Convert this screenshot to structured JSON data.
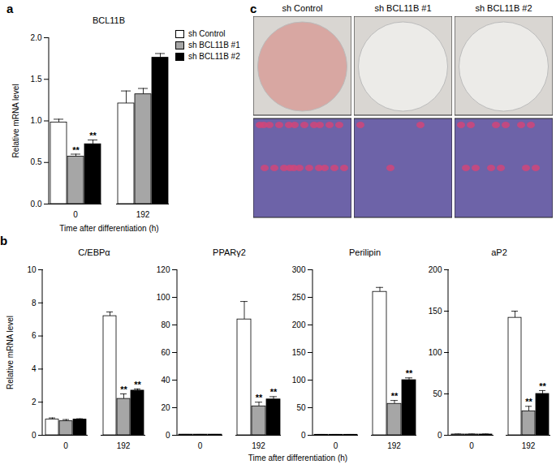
{
  "chart_data": [
    {
      "type": "bar",
      "panel": "a",
      "title": "BCL11B",
      "y_label": "Relative mRNA level",
      "x_label": "Time after differentiation (h)",
      "categories": [
        0,
        192
      ],
      "legend": "right",
      "ylim": [
        0,
        2
      ],
      "yticks": [
        {
          "value": 0,
          "label": "0.0"
        },
        {
          "value": 0.5,
          "label": "0.5"
        },
        {
          "value": 1,
          "label": "1.0"
        },
        {
          "value": 1.5,
          "label": "1.5"
        },
        {
          "value": 2,
          "label": "2.0"
        }
      ],
      "series": [
        {
          "name": "sh Control",
          "color": "#ffffff",
          "values": [
            0.98,
            1.21
          ],
          "errors": [
            0.04,
            0.15
          ],
          "significance": [
            null,
            null
          ]
        },
        {
          "name": "sh BCL11B #1",
          "color": "#a6a6a6",
          "values": [
            0.57,
            1.32
          ],
          "errors": [
            0.03,
            0.07
          ],
          "significance": [
            "**",
            null
          ]
        },
        {
          "name": "sh BCL11B #2",
          "color": "#000000",
          "values": [
            0.72,
            1.76
          ],
          "errors": [
            0.05,
            0.05
          ],
          "significance": [
            "**",
            null
          ]
        }
      ]
    },
    {
      "type": "bar",
      "panel": "b",
      "title": "C/EBPα",
      "y_label": "Relative mRNA level",
      "categories": [
        0,
        192
      ],
      "ylim": [
        0,
        10
      ],
      "yticks": [
        0,
        2,
        4,
        6,
        8,
        10
      ],
      "series": [
        {
          "name": "sh Control",
          "color": "#ffffff",
          "values": [
            0.95,
            7.2
          ],
          "errors": [
            0.1,
            0.25
          ],
          "significance": [
            null,
            null
          ]
        },
        {
          "name": "sh BCL11B #1",
          "color": "#a6a6a6",
          "values": [
            0.85,
            2.2
          ],
          "errors": [
            0.1,
            0.3
          ],
          "significance": [
            null,
            "**"
          ]
        },
        {
          "name": "sh BCL11B #2",
          "color": "#000000",
          "values": [
            0.95,
            2.7
          ],
          "errors": [
            0.05,
            0.1
          ],
          "significance": [
            null,
            "**"
          ]
        }
      ]
    },
    {
      "type": "bar",
      "title": "PPARγ2",
      "categories": [
        0,
        192
      ],
      "ylim": [
        0,
        120
      ],
      "yticks": [
        0,
        20,
        40,
        60,
        80,
        100,
        120
      ],
      "series": [
        {
          "name": "sh Control",
          "color": "#ffffff",
          "values": [
            0.5,
            84
          ],
          "errors": [
            0.1,
            13
          ],
          "significance": [
            null,
            null
          ]
        },
        {
          "name": "sh BCL11B #1",
          "color": "#a6a6a6",
          "values": [
            0.5,
            21
          ],
          "errors": [
            0.1,
            3
          ],
          "significance": [
            null,
            "**"
          ]
        },
        {
          "name": "sh BCL11B #2",
          "color": "#000000",
          "values": [
            0.5,
            26
          ],
          "errors": [
            0.1,
            2
          ],
          "significance": [
            null,
            "**"
          ]
        }
      ]
    },
    {
      "type": "bar",
      "title": "Perilipin",
      "categories": [
        0,
        192
      ],
      "ylim": [
        0,
        300
      ],
      "yticks": [
        0,
        50,
        100,
        150,
        200,
        250,
        300
      ],
      "series": [
        {
          "name": "sh Control",
          "color": "#ffffff",
          "values": [
            1,
            260
          ],
          "errors": [
            0.5,
            8
          ],
          "significance": [
            null,
            null
          ]
        },
        {
          "name": "sh BCL11B #1",
          "color": "#a6a6a6",
          "values": [
            1,
            57
          ],
          "errors": [
            0.5,
            6
          ],
          "significance": [
            null,
            "**"
          ]
        },
        {
          "name": "sh BCL11B #2",
          "color": "#000000",
          "values": [
            1,
            100
          ],
          "errors": [
            0.5,
            4
          ],
          "significance": [
            null,
            "**"
          ]
        }
      ]
    },
    {
      "type": "bar",
      "title": "aP2",
      "categories": [
        0,
        192
      ],
      "ylim": [
        0,
        200
      ],
      "yticks": [
        0,
        50,
        100,
        150,
        200
      ],
      "series": [
        {
          "name": "sh Control",
          "color": "#ffffff",
          "values": [
            1,
            142
          ],
          "errors": [
            0.5,
            8
          ],
          "significance": [
            null,
            null
          ]
        },
        {
          "name": "sh BCL11B #1",
          "color": "#a6a6a6",
          "values": [
            1,
            29
          ],
          "errors": [
            0.5,
            6
          ],
          "significance": [
            null,
            "**"
          ]
        },
        {
          "name": "sh BCL11B #2",
          "color": "#000000",
          "values": [
            1,
            50
          ],
          "errors": [
            0.5,
            4
          ],
          "significance": [
            null,
            "**"
          ]
        }
      ]
    }
  ],
  "shared_x_label": "Time after differentiation (h)",
  "images": {
    "panel": "c",
    "labels": [
      "sh Control",
      "sh BCL11B #1",
      "sh BCL11B #2"
    ]
  }
}
